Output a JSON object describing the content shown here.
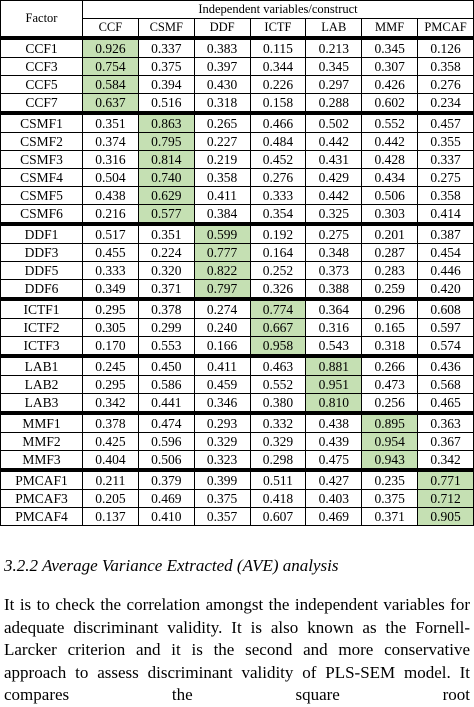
{
  "table": {
    "factor_header": "Factor",
    "group_header": "Independent variables/construct",
    "columns": [
      "CCF",
      "CSMF",
      "DDF",
      "ICTF",
      "LAB",
      "MMF",
      "PMCAF"
    ],
    "groups": [
      {
        "rows": [
          [
            "CCF1",
            "0.926",
            "0.337",
            "0.383",
            "0.115",
            "0.213",
            "0.345",
            "0.126"
          ],
          [
            "CCF3",
            "0.754",
            "0.375",
            "0.397",
            "0.344",
            "0.345",
            "0.307",
            "0.358"
          ],
          [
            "CCF5",
            "0.584",
            "0.394",
            "0.430",
            "0.226",
            "0.297",
            "0.426",
            "0.276"
          ],
          [
            "CCF7",
            "0.637",
            "0.516",
            "0.318",
            "0.158",
            "0.288",
            "0.602",
            "0.234"
          ]
        ]
      },
      {
        "rows": [
          [
            "CSMF1",
            "0.351",
            "0.863",
            "0.265",
            "0.466",
            "0.502",
            "0.552",
            "0.457"
          ],
          [
            "CSMF2",
            "0.374",
            "0.795",
            "0.227",
            "0.484",
            "0.442",
            "0.442",
            "0.355"
          ],
          [
            "CSMF3",
            "0.316",
            "0.814",
            "0.219",
            "0.452",
            "0.431",
            "0.428",
            "0.337"
          ],
          [
            "CSMF4",
            "0.504",
            "0.740",
            "0.358",
            "0.276",
            "0.429",
            "0.434",
            "0.275"
          ],
          [
            "CSMF5",
            "0.438",
            "0.629",
            "0.411",
            "0.333",
            "0.442",
            "0.506",
            "0.358"
          ],
          [
            "CSMF6",
            "0.216",
            "0.577",
            "0.384",
            "0.354",
            "0.325",
            "0.303",
            "0.414"
          ]
        ]
      },
      {
        "rows": [
          [
            "DDF1",
            "0.517",
            "0.351",
            "0.599",
            "0.192",
            "0.275",
            "0.201",
            "0.387"
          ],
          [
            "DDF3",
            "0.455",
            "0.224",
            "0.777",
            "0.164",
            "0.348",
            "0.287",
            "0.454"
          ],
          [
            "DDF5",
            "0.333",
            "0.320",
            "0.822",
            "0.252",
            "0.373",
            "0.283",
            "0.446"
          ],
          [
            "DDF6",
            "0.349",
            "0.371",
            "0.797",
            "0.326",
            "0.388",
            "0.259",
            "0.420"
          ]
        ]
      },
      {
        "rows": [
          [
            "ICTF1",
            "0.295",
            "0.378",
            "0.274",
            "0.774",
            "0.364",
            "0.296",
            "0.608"
          ],
          [
            "ICTF2",
            "0.305",
            "0.299",
            "0.240",
            "0.667",
            "0.316",
            "0.165",
            "0.597"
          ],
          [
            "ICTF3",
            "0.170",
            "0.553",
            "0.166",
            "0.958",
            "0.543",
            "0.318",
            "0.574"
          ]
        ]
      },
      {
        "rows": [
          [
            "LAB1",
            "0.245",
            "0.450",
            "0.411",
            "0.463",
            "0.881",
            "0.266",
            "0.436"
          ],
          [
            "LAB2",
            "0.295",
            "0.586",
            "0.459",
            "0.552",
            "0.951",
            "0.473",
            "0.568"
          ],
          [
            "LAB3",
            "0.342",
            "0.441",
            "0.346",
            "0.380",
            "0.810",
            "0.256",
            "0.465"
          ]
        ]
      },
      {
        "rows": [
          [
            "MMF1",
            "0.378",
            "0.474",
            "0.293",
            "0.332",
            "0.438",
            "0.895",
            "0.363"
          ],
          [
            "MMF2",
            "0.425",
            "0.596",
            "0.329",
            "0.329",
            "0.439",
            "0.954",
            "0.367"
          ],
          [
            "MMF3",
            "0.404",
            "0.506",
            "0.323",
            "0.298",
            "0.475",
            "0.943",
            "0.342"
          ]
        ]
      },
      {
        "rows": [
          [
            "PMCAF1",
            "0.211",
            "0.379",
            "0.399",
            "0.511",
            "0.427",
            "0.235",
            "0.771"
          ],
          [
            "PMCAF3",
            "0.205",
            "0.469",
            "0.375",
            "0.418",
            "0.403",
            "0.375",
            "0.712"
          ],
          [
            "PMCAF4",
            "0.137",
            "0.410",
            "0.357",
            "0.607",
            "0.469",
            "0.371",
            "0.905"
          ]
        ]
      }
    ]
  },
  "section": {
    "heading": "3.2.2 Average Variance Extracted (AVE) analysis",
    "paragraph": "It is to check the correlation amongst the independent variables for adequate discriminant validity. It is also known as the Fornell-Larcker criterion and it is the second and more conservative approach to assess discriminant validity of PLS-SEM model. It compares the square root"
  }
}
